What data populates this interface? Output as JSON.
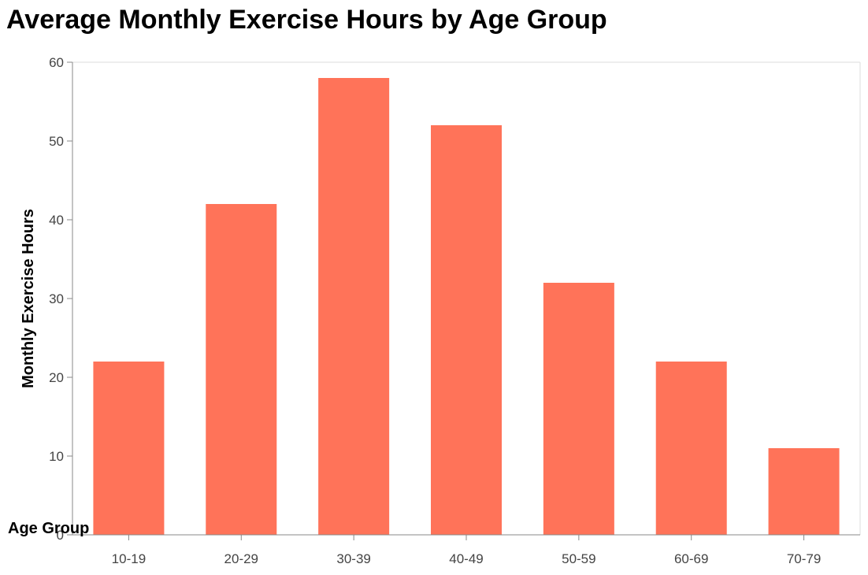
{
  "chart_data": {
    "type": "bar",
    "title": "Average Monthly Exercise Hours by Age Group",
    "xlabel": "Age Group",
    "ylabel": "Monthly Exercise Hours",
    "categories": [
      "10-19",
      "20-29",
      "30-39",
      "40-49",
      "50-59",
      "60-69",
      "70-79"
    ],
    "values": [
      22,
      42,
      58,
      52,
      32,
      22,
      11
    ],
    "ylim": [
      0,
      60
    ],
    "yticks": [
      0,
      10,
      20,
      30,
      40,
      50,
      60
    ],
    "grid": false,
    "bar_color": "#ff7359",
    "axis_color": "#888888"
  }
}
